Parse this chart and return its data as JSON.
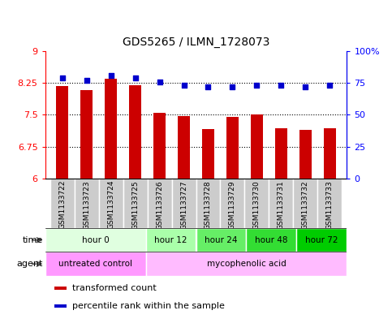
{
  "title": "GDS5265 / ILMN_1728073",
  "samples": [
    "GSM1133722",
    "GSM1133723",
    "GSM1133724",
    "GSM1133725",
    "GSM1133726",
    "GSM1133727",
    "GSM1133728",
    "GSM1133729",
    "GSM1133730",
    "GSM1133731",
    "GSM1133732",
    "GSM1133733"
  ],
  "bar_values": [
    8.17,
    8.08,
    8.35,
    8.19,
    7.55,
    7.47,
    7.17,
    7.45,
    7.5,
    7.18,
    7.14,
    7.18
  ],
  "dot_values": [
    79,
    77,
    81,
    79,
    76,
    73,
    72,
    72,
    73,
    73,
    72,
    73
  ],
  "bar_color": "#cc0000",
  "dot_color": "#0000cc",
  "ylim_left": [
    6,
    9
  ],
  "ylim_right": [
    0,
    100
  ],
  "yticks_left": [
    6,
    6.75,
    7.5,
    8.25,
    9
  ],
  "yticks_right": [
    0,
    25,
    50,
    75,
    100
  ],
  "ytick_labels_left": [
    "6",
    "6.75",
    "7.5",
    "8.25",
    "9"
  ],
  "ytick_labels_right": [
    "0",
    "25",
    "50",
    "75",
    "100%"
  ],
  "hlines": [
    6.75,
    7.5,
    8.25
  ],
  "time_groups": [
    {
      "label": "hour 0",
      "start": 0,
      "end": 4,
      "color": "#e0ffe0"
    },
    {
      "label": "hour 12",
      "start": 4,
      "end": 6,
      "color": "#aaffaa"
    },
    {
      "label": "hour 24",
      "start": 6,
      "end": 8,
      "color": "#66ee66"
    },
    {
      "label": "hour 48",
      "start": 8,
      "end": 10,
      "color": "#33dd33"
    },
    {
      "label": "hour 72",
      "start": 10,
      "end": 12,
      "color": "#00cc00"
    }
  ],
  "agent_groups": [
    {
      "label": "untreated control",
      "start": 0,
      "end": 4,
      "color": "#ff99ff"
    },
    {
      "label": "mycophenolic acid",
      "start": 4,
      "end": 12,
      "color": "#ffbbff"
    }
  ],
  "legend_items": [
    {
      "label": "transformed count",
      "color": "#cc0000"
    },
    {
      "label": "percentile rank within the sample",
      "color": "#0000cc"
    }
  ],
  "bar_width": 0.5,
  "base_value": 6.0,
  "title_fontsize": 10,
  "label_fontsize": 7.5,
  "sample_fontsize": 6.5
}
